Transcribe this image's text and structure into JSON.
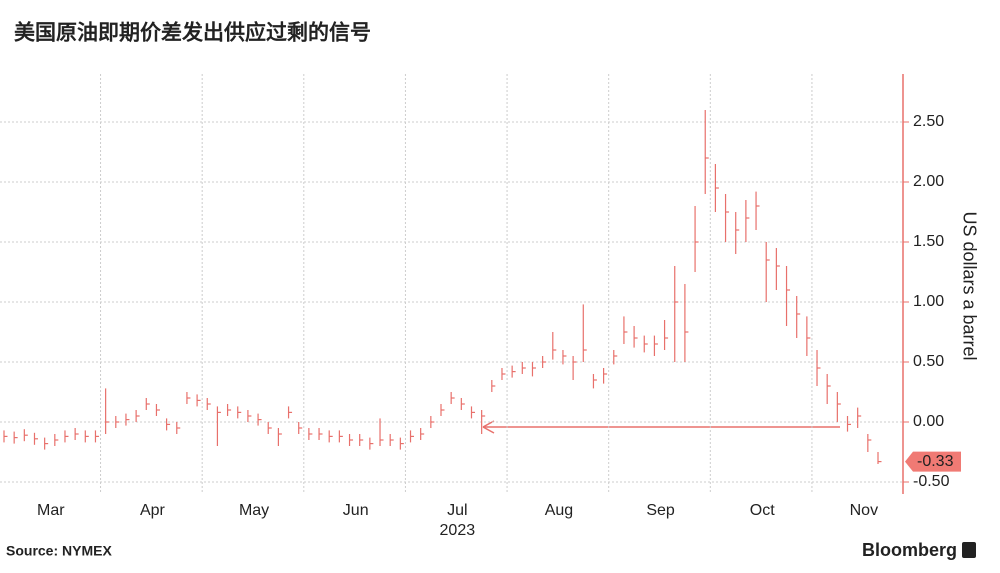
{
  "chart_data": {
    "type": "ohlc",
    "title": "美国原油即期价差发出供应过剩的信号",
    "y_axis_label": "US dollars a barrel",
    "year_label": "2023",
    "source": "Source: NYMEX",
    "brand": "Bloomberg",
    "color": "#e8706b",
    "categories": [
      null,
      null,
      null,
      null,
      null,
      "Mar",
      null,
      null,
      null,
      null,
      null,
      null,
      null,
      null,
      null,
      "Apr",
      null,
      null,
      null,
      null,
      null,
      null,
      null,
      null,
      null,
      "May",
      null,
      null,
      null,
      null,
      null,
      null,
      null,
      null,
      null,
      "Jun",
      null,
      null,
      null,
      null,
      null,
      null,
      null,
      null,
      null,
      "Jul",
      null,
      null,
      null,
      null,
      null,
      null,
      null,
      null,
      null,
      "Aug",
      null,
      null,
      null,
      null,
      null,
      null,
      null,
      null,
      null,
      "Sep",
      null,
      null,
      null,
      null,
      null,
      null,
      null,
      null,
      null,
      "Oct",
      null,
      null,
      null,
      null,
      null,
      null,
      null,
      null,
      null,
      "Nov",
      null
    ],
    "values": [
      -0.12,
      -0.13,
      -0.11,
      -0.14,
      -0.18,
      -0.15,
      -0.12,
      -0.1,
      -0.12,
      -0.12,
      0.0,
      0.0,
      0.02,
      0.05,
      0.15,
      0.1,
      -0.02,
      -0.05,
      0.2,
      0.18,
      0.15,
      0.08,
      0.1,
      0.08,
      0.05,
      0.02,
      -0.05,
      -0.1,
      0.08,
      -0.05,
      -0.1,
      -0.1,
      -0.12,
      -0.12,
      -0.15,
      -0.15,
      -0.18,
      -0.15,
      -0.15,
      -0.18,
      -0.12,
      -0.1,
      0.0,
      0.1,
      0.2,
      0.15,
      0.08,
      0.05,
      0.3,
      0.4,
      0.42,
      0.45,
      0.45,
      0.5,
      0.6,
      0.55,
      0.5,
      0.6,
      0.35,
      0.4,
      0.55,
      0.75,
      0.7,
      0.65,
      0.65,
      0.7,
      1.0,
      0.75,
      1.5,
      2.2,
      1.95,
      1.75,
      1.6,
      1.7,
      1.8,
      1.35,
      1.3,
      1.1,
      0.9,
      0.7,
      0.45,
      0.3,
      0.15,
      -0.02,
      0.05,
      -0.15,
      -0.33
    ],
    "high": [
      -0.07,
      -0.08,
      -0.06,
      -0.09,
      -0.13,
      -0.1,
      -0.07,
      -0.05,
      -0.07,
      -0.07,
      0.28,
      0.05,
      0.07,
      0.1,
      0.2,
      0.15,
      0.03,
      0.0,
      0.25,
      0.23,
      0.2,
      0.13,
      0.15,
      0.13,
      0.1,
      0.07,
      0.0,
      -0.05,
      0.13,
      0.0,
      -0.05,
      -0.05,
      -0.07,
      -0.07,
      -0.1,
      -0.1,
      -0.13,
      0.03,
      -0.1,
      -0.13,
      -0.07,
      -0.05,
      0.05,
      0.15,
      0.25,
      0.2,
      0.13,
      0.1,
      0.35,
      0.45,
      0.47,
      0.5,
      0.5,
      0.55,
      0.75,
      0.6,
      0.55,
      0.98,
      0.4,
      0.45,
      0.6,
      0.88,
      0.8,
      0.72,
      0.72,
      0.85,
      1.3,
      1.15,
      1.8,
      2.6,
      2.15,
      1.9,
      1.75,
      1.85,
      1.92,
      1.5,
      1.45,
      1.3,
      1.05,
      0.88,
      0.6,
      0.4,
      0.25,
      0.05,
      0.12,
      -0.1,
      -0.25
    ],
    "low": [
      -0.17,
      -0.18,
      -0.16,
      -0.19,
      -0.23,
      -0.2,
      -0.17,
      -0.15,
      -0.17,
      -0.17,
      -0.1,
      -0.05,
      -0.03,
      0.0,
      0.1,
      0.05,
      -0.07,
      -0.1,
      0.15,
      0.13,
      0.1,
      -0.2,
      0.05,
      0.03,
      0.0,
      -0.03,
      -0.1,
      -0.2,
      0.03,
      -0.1,
      -0.15,
      -0.15,
      -0.17,
      -0.17,
      -0.2,
      -0.2,
      -0.23,
      -0.2,
      -0.2,
      -0.23,
      -0.17,
      -0.15,
      -0.05,
      0.05,
      0.15,
      0.1,
      0.03,
      -0.1,
      0.25,
      0.35,
      0.37,
      0.4,
      0.38,
      0.45,
      0.52,
      0.48,
      0.35,
      0.5,
      0.28,
      0.32,
      0.48,
      0.65,
      0.62,
      0.58,
      0.55,
      0.6,
      0.5,
      0.5,
      1.25,
      1.9,
      1.75,
      1.5,
      1.4,
      1.5,
      1.6,
      1.0,
      1.1,
      0.8,
      0.7,
      0.55,
      0.3,
      0.15,
      0.0,
      -0.08,
      -0.05,
      -0.25,
      -0.35
    ],
    "ylim": [
      -0.6,
      2.9
    ],
    "yticks": [
      {
        "value": -0.5,
        "label": "-0.50"
      },
      {
        "value": 0,
        "label": "0.00"
      },
      {
        "value": 0.5,
        "label": "0.50"
      },
      {
        "value": 1,
        "label": "1.00"
      },
      {
        "value": 1.5,
        "label": "1.50"
      },
      {
        "value": 2,
        "label": "2.00"
      },
      {
        "value": 2.5,
        "label": "2.50"
      }
    ],
    "grid": true
  }
}
